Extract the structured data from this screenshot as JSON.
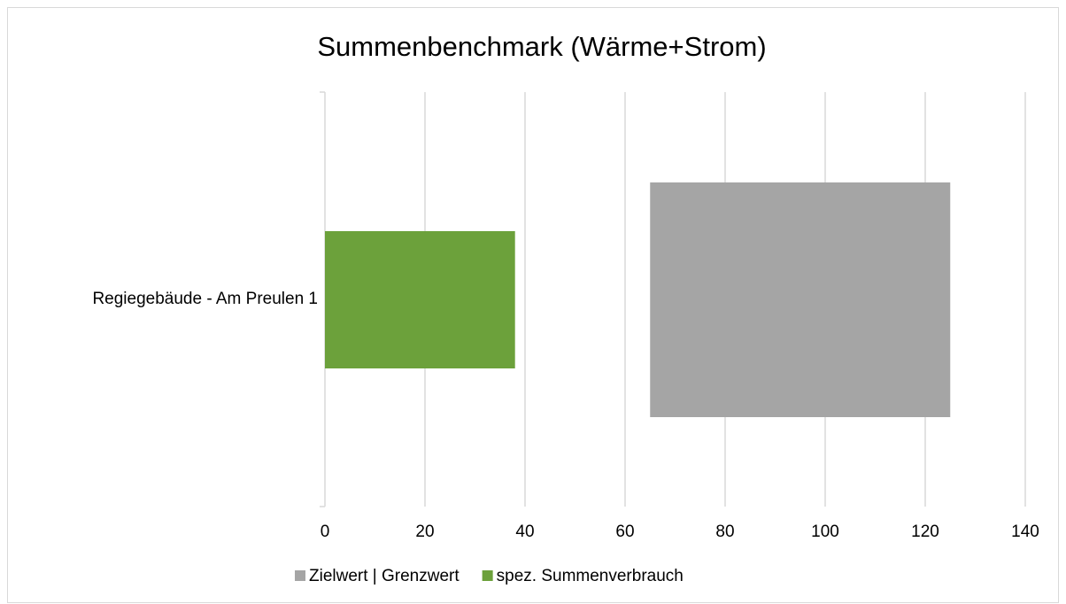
{
  "chart_data": {
    "type": "bar",
    "orientation": "horizontal",
    "title": "Summenbenchmark (Wärme+Strom)",
    "categories": [
      "Regiegebäude - Am Preulen 1"
    ],
    "series": [
      {
        "name": "Zielwert | Grenzwert",
        "color": "#a5a5a5",
        "values": [
          [
            65,
            125
          ]
        ]
      },
      {
        "name": "spez. Summenverbrauch",
        "color": "#6ca13b",
        "values": [
          38
        ]
      }
    ],
    "xlim": [
      0,
      140
    ],
    "xticks": [
      0,
      20,
      40,
      60,
      80,
      100,
      120,
      140
    ],
    "grid": true,
    "legend": "bottom"
  }
}
